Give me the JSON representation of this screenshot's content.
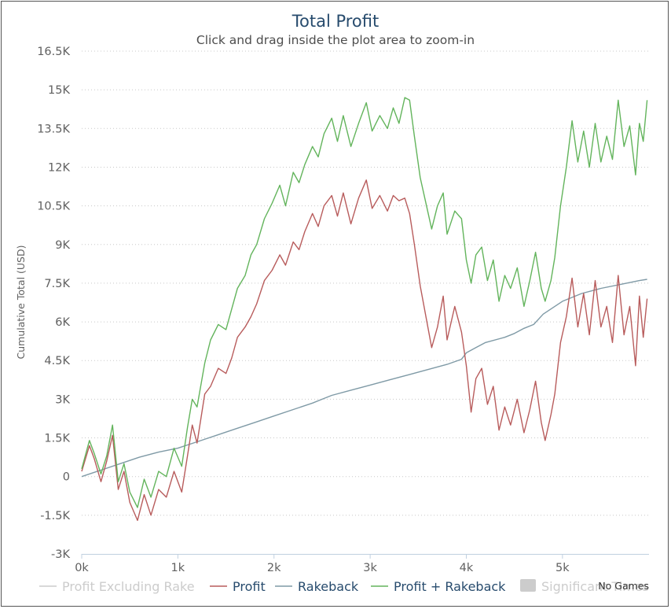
{
  "chart_data": {
    "type": "line",
    "title": "Total Profit",
    "subtitle": "Click and drag inside the plot area to zoom-in",
    "xlabel": "",
    "ylabel": "Cumulative Total (USD)",
    "xlim": [
      0,
      5900
    ],
    "ylim": [
      -3000,
      16500
    ],
    "x_tick_values": [
      0,
      1000,
      2000,
      3000,
      4000,
      5000
    ],
    "x_tick_labels": [
      "0k",
      "1k",
      "2k",
      "3k",
      "4k",
      "5k"
    ],
    "y_tick_values": [
      -3000,
      -1500,
      0,
      1500,
      3000,
      4500,
      6000,
      7500,
      9000,
      10500,
      12000,
      13500,
      15000,
      16500
    ],
    "y_tick_labels": [
      "-3K",
      "-1.5K",
      "0",
      "1.5K",
      "3K",
      "4.5K",
      "6K",
      "7.5K",
      "9K",
      "10.5K",
      "12K",
      "13.5K",
      "15K",
      "16.5K"
    ],
    "grid": "horizontal dotted",
    "legend_position": "bottom",
    "series": [
      {
        "name": "Profit",
        "color": "#b85c5c",
        "x": [
          0,
          80,
          130,
          200,
          260,
          320,
          380,
          440,
          500,
          580,
          650,
          720,
          800,
          880,
          960,
          1040,
          1100,
          1150,
          1200,
          1280,
          1340,
          1420,
          1500,
          1560,
          1620,
          1700,
          1760,
          1820,
          1900,
          1980,
          2060,
          2120,
          2200,
          2260,
          2320,
          2400,
          2460,
          2520,
          2600,
          2660,
          2720,
          2800,
          2880,
          2960,
          3020,
          3100,
          3180,
          3240,
          3300,
          3360,
          3410,
          3460,
          3520,
          3580,
          3640,
          3700,
          3760,
          3800,
          3880,
          3950,
          4000,
          4050,
          4100,
          4160,
          4220,
          4280,
          4340,
          4400,
          4460,
          4530,
          4600,
          4660,
          4720,
          4780,
          4820,
          4880,
          4920,
          4980,
          5040,
          5100,
          5160,
          5220,
          5280,
          5340,
          5400,
          5460,
          5520,
          5580,
          5640,
          5700,
          5760,
          5800,
          5840,
          5880
        ],
        "values": [
          200,
          1200,
          700,
          -200,
          600,
          1600,
          -500,
          200,
          -1000,
          -1700,
          -700,
          -1500,
          -500,
          -800,
          200,
          -600,
          800,
          2000,
          1300,
          3200,
          3500,
          4200,
          4000,
          4600,
          5400,
          5800,
          6200,
          6700,
          7600,
          8000,
          8600,
          8200,
          9100,
          8800,
          9500,
          10200,
          9700,
          10500,
          10900,
          10100,
          11000,
          9800,
          10800,
          11500,
          10400,
          10900,
          10300,
          10900,
          10700,
          10800,
          10200,
          9000,
          7400,
          6200,
          5000,
          5800,
          7000,
          5300,
          6600,
          5600,
          4300,
          2500,
          3800,
          4200,
          2800,
          3500,
          1800,
          2700,
          2000,
          3000,
          1700,
          2600,
          3700,
          2100,
          1400,
          2400,
          3200,
          5200,
          6200,
          7700,
          5800,
          7100,
          5500,
          7600,
          5800,
          6600,
          5200,
          7800,
          5500,
          6600,
          4300,
          7000,
          5400,
          6900
        ]
      },
      {
        "name": "Rakeback",
        "color": "#7f9aa6",
        "x": [
          0,
          200,
          400,
          600,
          800,
          1000,
          1200,
          1400,
          1600,
          1800,
          2000,
          2200,
          2400,
          2500,
          2600,
          2800,
          3000,
          3200,
          3400,
          3600,
          3800,
          3950,
          4000,
          4100,
          4200,
          4400,
          4500,
          4600,
          4700,
          4800,
          5000,
          5200,
          5400,
          5600,
          5800,
          5880
        ],
        "values": [
          0,
          250,
          500,
          750,
          950,
          1100,
          1350,
          1600,
          1850,
          2100,
          2350,
          2600,
          2850,
          3000,
          3150,
          3350,
          3550,
          3750,
          3950,
          4150,
          4350,
          4550,
          4800,
          5000,
          5200,
          5400,
          5550,
          5750,
          5900,
          6300,
          6800,
          7100,
          7300,
          7450,
          7600,
          7650
        ]
      },
      {
        "name": "Profit + Rakeback",
        "color": "#63b45c",
        "x": [
          0,
          80,
          130,
          200,
          260,
          320,
          380,
          440,
          500,
          580,
          650,
          720,
          800,
          880,
          960,
          1040,
          1100,
          1150,
          1200,
          1280,
          1340,
          1420,
          1500,
          1560,
          1620,
          1700,
          1760,
          1820,
          1900,
          1980,
          2060,
          2120,
          2200,
          2260,
          2320,
          2400,
          2460,
          2520,
          2600,
          2660,
          2720,
          2800,
          2880,
          2960,
          3020,
          3100,
          3180,
          3240,
          3300,
          3360,
          3410,
          3460,
          3520,
          3580,
          3640,
          3700,
          3760,
          3800,
          3880,
          3950,
          4000,
          4050,
          4100,
          4160,
          4220,
          4280,
          4340,
          4400,
          4460,
          4530,
          4600,
          4660,
          4720,
          4780,
          4820,
          4880,
          4920,
          4980,
          5040,
          5100,
          5160,
          5220,
          5280,
          5340,
          5400,
          5460,
          5520,
          5580,
          5640,
          5700,
          5760,
          5800,
          5840,
          5880
        ],
        "values": [
          300,
          1400,
          900,
          100,
          800,
          2000,
          -200,
          500,
          -600,
          -1200,
          -100,
          -800,
          200,
          0,
          1100,
          400,
          1900,
          3000,
          2700,
          4400,
          5300,
          5900,
          5700,
          6500,
          7300,
          7800,
          8600,
          9000,
          10000,
          10600,
          11300,
          10500,
          11800,
          11400,
          12100,
          12800,
          12400,
          13300,
          13900,
          13000,
          14000,
          12800,
          13700,
          14500,
          13400,
          14000,
          13500,
          14300,
          13700,
          14700,
          14600,
          13200,
          11600,
          10600,
          9600,
          10500,
          11000,
          9400,
          10300,
          10000,
          8400,
          7500,
          8600,
          8900,
          7600,
          8400,
          6800,
          7800,
          7300,
          8100,
          6600,
          7600,
          8700,
          7300,
          6800,
          7600,
          8500,
          10500,
          12000,
          13800,
          12200,
          13400,
          12000,
          13700,
          12200,
          13200,
          12300,
          14600,
          12800,
          13600,
          11700,
          13700,
          13000,
          14600
        ]
      }
    ],
    "legend": [
      {
        "name": "Profit Excluding Rake",
        "color": "#c0c0c0",
        "symbol": "line",
        "hidden": true
      },
      {
        "name": "Profit",
        "color": "#b85c5c",
        "symbol": "line",
        "hidden": false
      },
      {
        "name": "Rakeback",
        "color": "#7f9aa6",
        "symbol": "line",
        "hidden": false
      },
      {
        "name": "Profit + Rakeback",
        "color": "#63b45c",
        "symbol": "line",
        "hidden": false
      },
      {
        "name": "Significant Times",
        "color": "#cccccc",
        "symbol": "box",
        "hidden": true
      }
    ],
    "corner_note": "No Games"
  }
}
